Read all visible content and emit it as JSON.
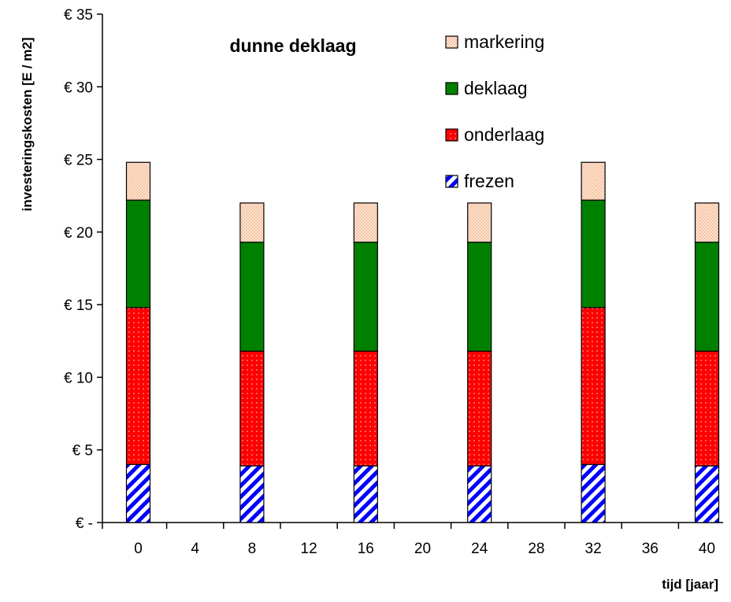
{
  "chart_data": {
    "type": "bar",
    "stacked": true,
    "title": "dunne deklaag",
    "xlabel": "tijd [jaar]",
    "ylabel": "investeringskosten [E / m2]",
    "x_ticks": [
      "0",
      "4",
      "8",
      "12",
      "16",
      "20",
      "24",
      "28",
      "32",
      "36",
      "40"
    ],
    "categories": [
      "0",
      "8",
      "16",
      "24",
      "32",
      "40"
    ],
    "ylim": [
      0,
      35
    ],
    "y_ticks": [
      0,
      5,
      10,
      15,
      20,
      25,
      30,
      35
    ],
    "y_tick_labels": [
      "€ -",
      "€ 5",
      "€ 10",
      "€ 15",
      "€ 20",
      "€ 25",
      "€ 30",
      "€ 35"
    ],
    "legend_position": "top-right",
    "grid": false,
    "series": [
      {
        "name": "frezen",
        "values": [
          4.0,
          3.9,
          3.9,
          3.9,
          4.0,
          3.9
        ],
        "color": "#0000ff",
        "pattern": "diagonal-stripes"
      },
      {
        "name": "onderlaag",
        "values": [
          10.8,
          7.9,
          7.9,
          7.9,
          10.8,
          7.9
        ],
        "color": "#ff0000",
        "pattern": "dots"
      },
      {
        "name": "deklaag",
        "values": [
          7.4,
          7.5,
          7.5,
          7.5,
          7.4,
          7.5
        ],
        "color": "#008000",
        "pattern": "solid"
      },
      {
        "name": "markering",
        "values": [
          2.6,
          2.7,
          2.7,
          2.7,
          2.6,
          2.7
        ],
        "color": "#fcd5b5",
        "pattern": "fine-dots"
      }
    ],
    "legend_order": [
      "markering",
      "deklaag",
      "onderlaag",
      "frezen"
    ]
  }
}
